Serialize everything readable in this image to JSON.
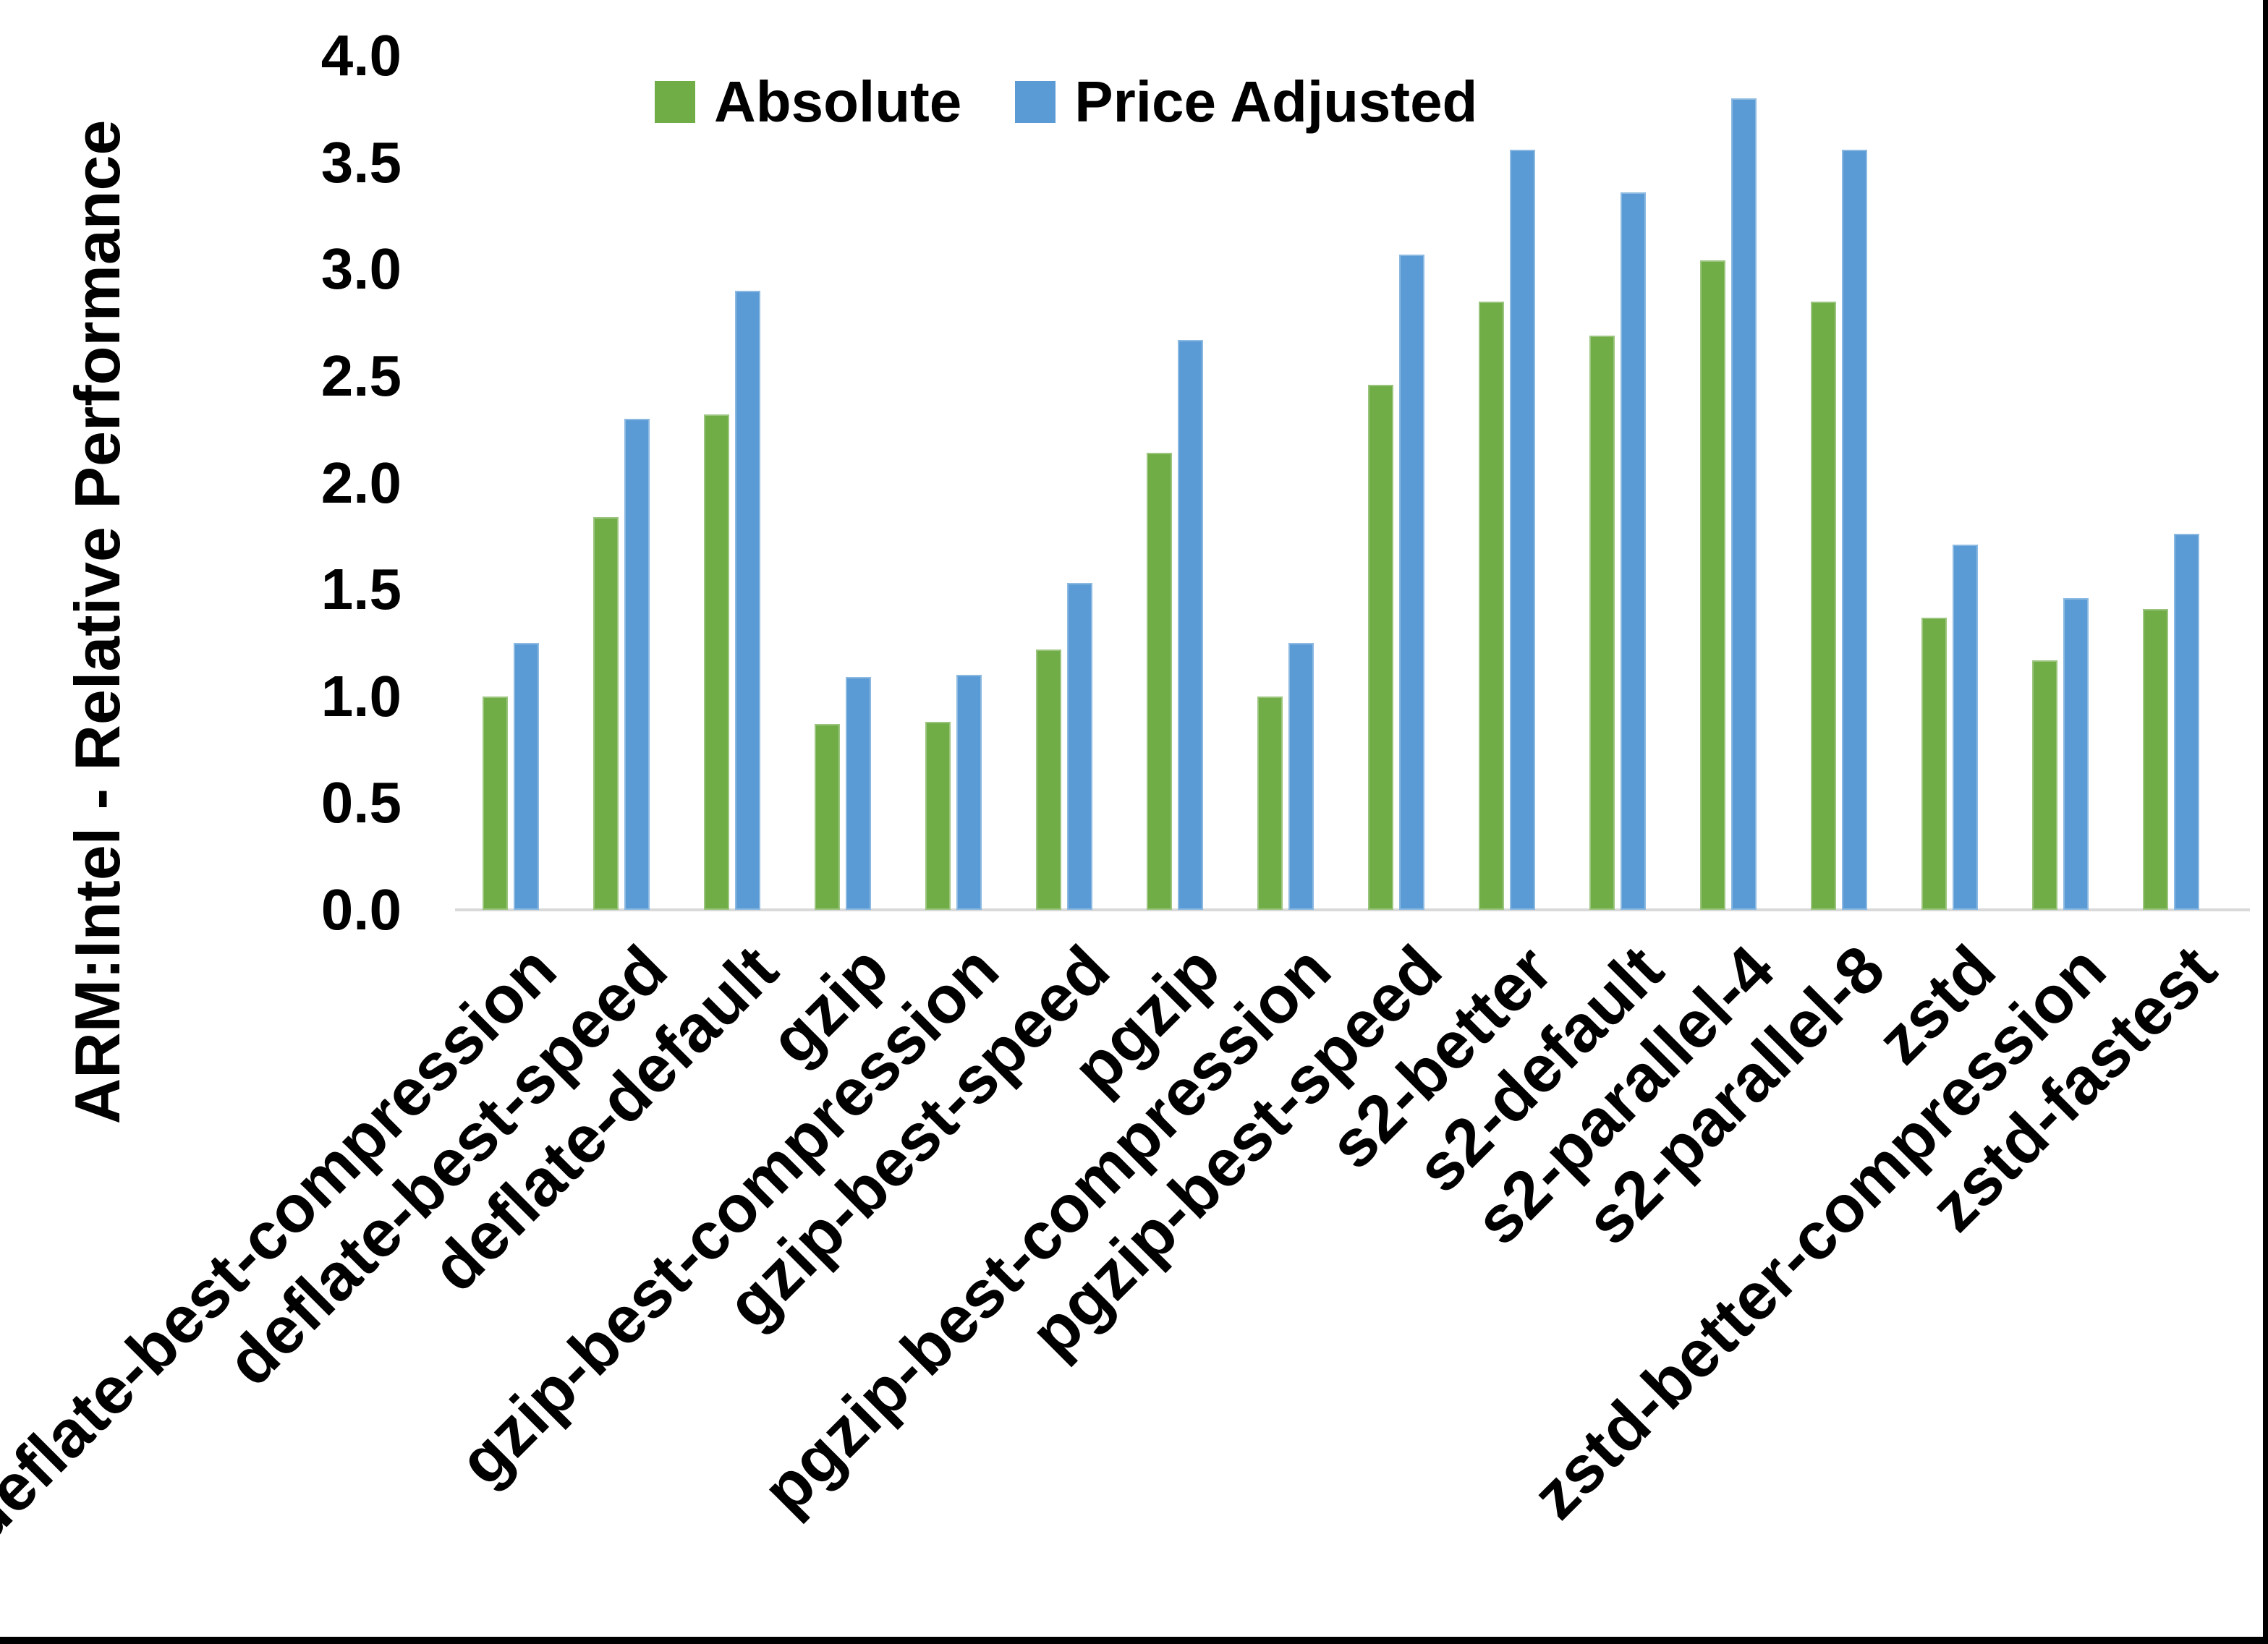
{
  "chart_data": {
    "type": "bar",
    "title": "",
    "xlabel": "",
    "ylabel": "ARM:Intel - Relative Performance",
    "ylim": [
      0.0,
      4.0
    ],
    "ytick_step": 0.5,
    "ytick_format_decimals": 1,
    "grid": false,
    "legend_position": "top-center",
    "colors": {
      "absolute": "#70AD47",
      "price_adjusted": "#5B9BD5",
      "axis_line": "#D9D9D9",
      "text": "#000000",
      "background": "#FFFFFF",
      "window_edge": "#000000"
    },
    "categories": [
      "deflate-best-compression",
      "deflate-best-speed",
      "deflate-default",
      "gzip",
      "gzip-best-compression",
      "gzip-best-speed",
      "pgzip",
      "pgzip-best-compression",
      "pgzip-best-speed",
      "s2-better",
      "s2-default",
      "s2-parallel-4",
      "s2-parallel-8",
      "zstd",
      "zstd-better-compression",
      "zstd-fastest"
    ],
    "series": [
      {
        "name": "Absolute",
        "values": [
          1.0,
          1.84,
          2.32,
          0.87,
          0.88,
          1.22,
          2.14,
          1.0,
          2.46,
          2.85,
          2.69,
          3.04,
          2.85,
          1.37,
          1.17,
          1.41
        ]
      },
      {
        "name": "Price Adjusted",
        "values": [
          1.25,
          2.3,
          2.9,
          1.09,
          1.1,
          1.53,
          2.67,
          1.25,
          3.07,
          3.56,
          3.36,
          3.8,
          3.56,
          1.71,
          1.46,
          1.76
        ]
      }
    ]
  }
}
